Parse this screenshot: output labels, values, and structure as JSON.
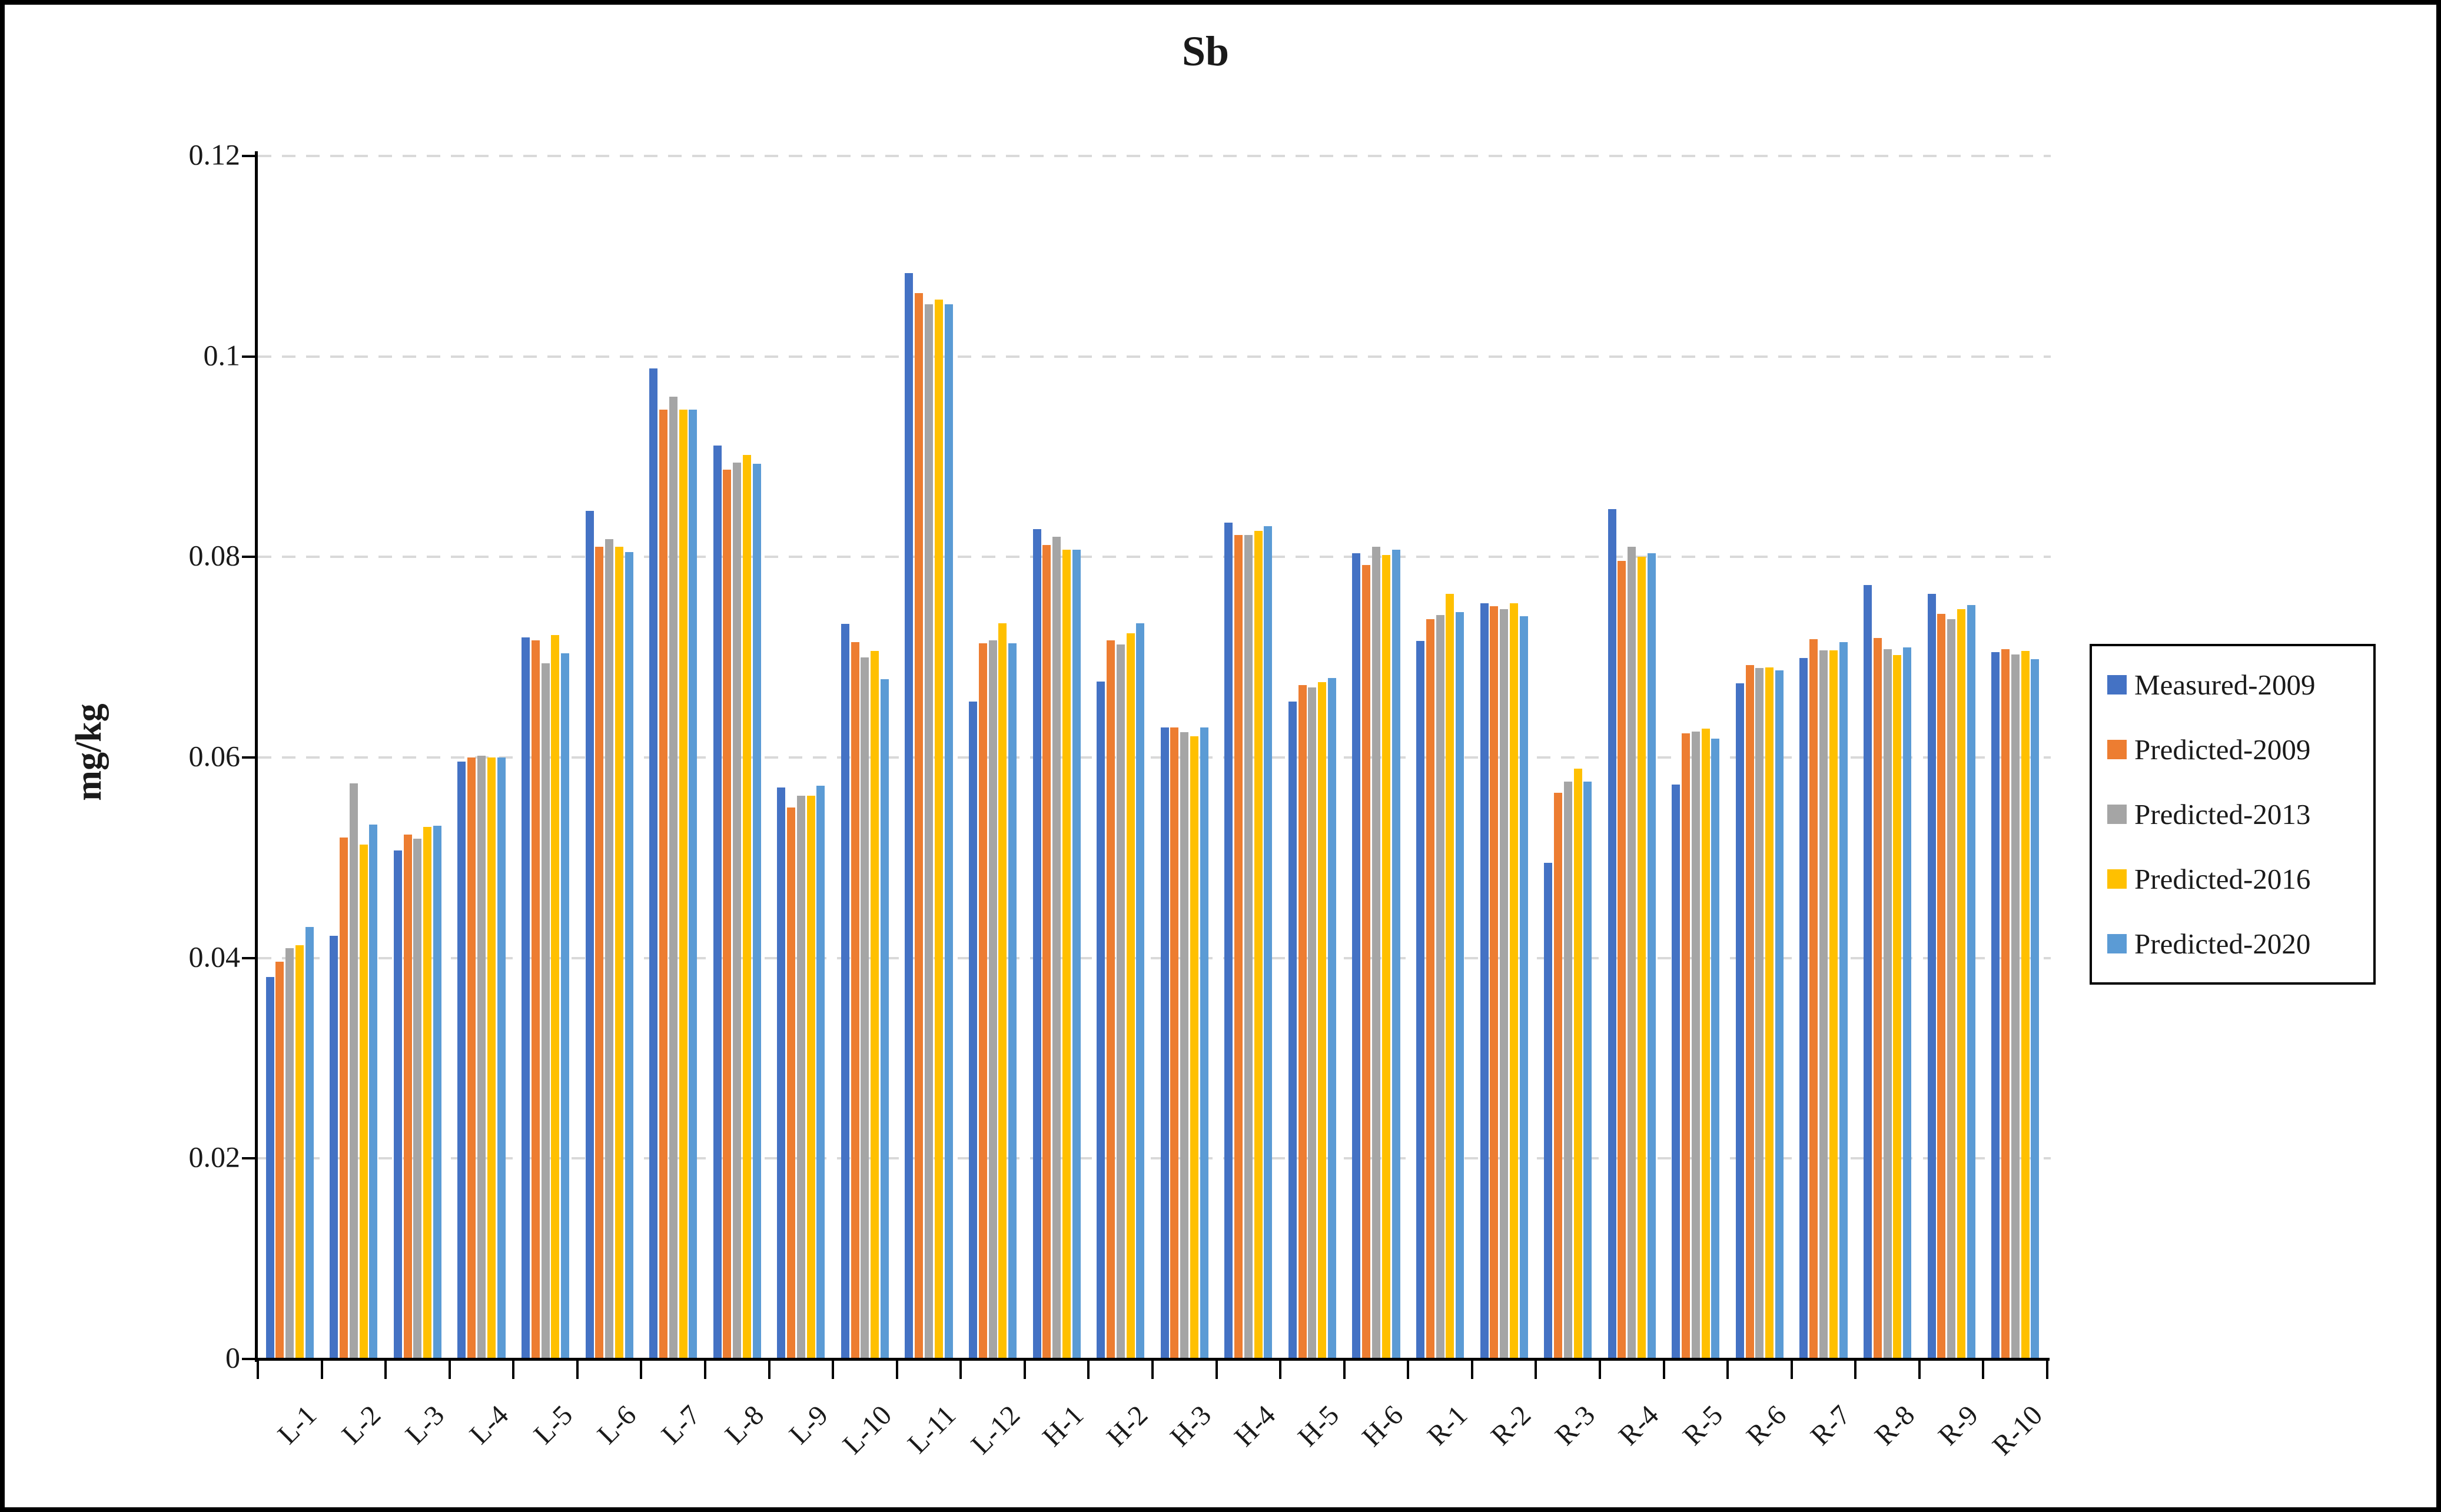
{
  "title": "Sb",
  "y_axis": {
    "title": "mg/kg",
    "ticks": [
      {
        "label": "0.12",
        "value": 0.12
      },
      {
        "label": "0.1",
        "value": 0.1
      },
      {
        "label": "0.08",
        "value": 0.08
      },
      {
        "label": "0.06",
        "value": 0.06
      },
      {
        "label": "0.04",
        "value": 0.04
      },
      {
        "label": "0.02",
        "value": 0.02
      },
      {
        "label": "0",
        "value": 0
      }
    ]
  },
  "colors": {
    "grid": "#D9D9D9",
    "axis": "#000000",
    "text": "#1a1a1a",
    "frame": "#000000",
    "background": "#FFFFFF"
  },
  "chart_data": {
    "type": "bar",
    "title": "Sb",
    "xlabel": "",
    "ylabel": "mg/kg",
    "ylim": [
      0,
      0.12
    ],
    "y_tick_step": 0.02,
    "grid": "horizontal-dashed",
    "legend_position": "right-middle",
    "categories": [
      "L-1",
      "L-2",
      "L-3",
      "L-4",
      "L-5",
      "L-6",
      "L-7",
      "L-8",
      "L-9",
      "L-10",
      "L-11",
      "L-12",
      "H-1",
      "H-2",
      "H-3",
      "H-4",
      "H-5",
      "H-6",
      "R-1",
      "R-2",
      "R-3",
      "R-4",
      "R-5",
      "R-6",
      "R-7",
      "R-8",
      "R-9",
      "R-10"
    ],
    "series": [
      {
        "name": "Measured-2009",
        "color": "#4472C4",
        "values": [
          0.0381,
          0.0422,
          0.0507,
          0.0596,
          0.072,
          0.0846,
          0.0988,
          0.0911,
          0.057,
          0.0733,
          0.1083,
          0.0656,
          0.0828,
          0.0676,
          0.063,
          0.0834,
          0.0656,
          0.0804,
          0.0716,
          0.0754,
          0.0495,
          0.0848,
          0.0573,
          0.0674,
          0.0699,
          0.0772,
          0.0763,
          0.0705
        ]
      },
      {
        "name": "Predicted-2009",
        "color": "#ED7D31",
        "values": [
          0.0396,
          0.052,
          0.0523,
          0.06,
          0.0717,
          0.081,
          0.0947,
          0.0887,
          0.055,
          0.0715,
          0.1063,
          0.0714,
          0.0812,
          0.0717,
          0.063,
          0.0822,
          0.0672,
          0.0792,
          0.0738,
          0.0751,
          0.0565,
          0.0796,
          0.0624,
          0.0692,
          0.0718,
          0.0719,
          0.0743,
          0.0708
        ]
      },
      {
        "name": "Predicted-2013",
        "color": "#A5A5A5",
        "values": [
          0.041,
          0.0574,
          0.0519,
          0.0602,
          0.0694,
          0.0818,
          0.096,
          0.0894,
          0.0562,
          0.07,
          0.1052,
          0.0717,
          0.082,
          0.0713,
          0.0625,
          0.0822,
          0.067,
          0.081,
          0.0742,
          0.0748,
          0.0576,
          0.081,
          0.0626,
          0.0689,
          0.0707,
          0.0708,
          0.0738,
          0.0703
        ]
      },
      {
        "name": "Predicted-2016",
        "color": "#FFC000",
        "values": [
          0.0413,
          0.0513,
          0.0531,
          0.06,
          0.0722,
          0.081,
          0.0947,
          0.0902,
          0.0562,
          0.0706,
          0.1057,
          0.0734,
          0.0807,
          0.0724,
          0.0621,
          0.0826,
          0.0675,
          0.0802,
          0.0763,
          0.0754,
          0.0589,
          0.08,
          0.0629,
          0.069,
          0.0707,
          0.0702,
          0.0748,
          0.0706
        ]
      },
      {
        "name": "Predicted-2020",
        "color": "#5B9BD5",
        "values": [
          0.0431,
          0.0533,
          0.0532,
          0.06,
          0.0704,
          0.0805,
          0.0947,
          0.0893,
          0.0572,
          0.0678,
          0.1052,
          0.0714,
          0.0807,
          0.0734,
          0.063,
          0.0831,
          0.0679,
          0.0807,
          0.0745,
          0.0741,
          0.0576,
          0.0804,
          0.0619,
          0.0687,
          0.0715,
          0.071,
          0.0752,
          0.0698
        ]
      }
    ]
  }
}
